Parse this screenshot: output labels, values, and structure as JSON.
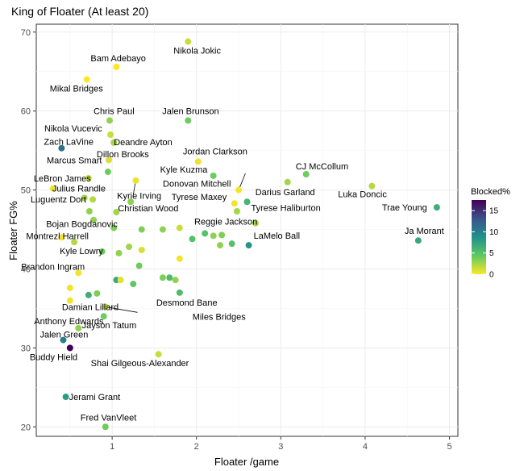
{
  "chart_data": {
    "type": "scatter",
    "title": "King of Floater (At least 20)",
    "xlabel": "Floater /game",
    "ylabel": "Floater FG%",
    "xlim": [
      0.1,
      5.1
    ],
    "ylim": [
      18.8,
      71.0
    ],
    "xticks": [
      1,
      2,
      3,
      4,
      5
    ],
    "yticks": [
      20,
      30,
      40,
      50,
      60,
      70
    ],
    "grid": true,
    "legend": {
      "title": "Blocked%",
      "ticks": [
        0,
        5,
        10,
        15
      ],
      "min": 0,
      "max": 17.5,
      "position": "right"
    },
    "points": [
      {
        "x": 1.9,
        "y": 68.8,
        "blocked": 1.5,
        "label": "Nikola Jokic"
      },
      {
        "x": 1.05,
        "y": 65.6,
        "blocked": 0.0,
        "label": "Bam Adebayo"
      },
      {
        "x": 0.7,
        "y": 64.0,
        "blocked": 0.0,
        "label": "Mikal Bridges"
      },
      {
        "x": 0.97,
        "y": 58.8,
        "blocked": 3.0,
        "label": "Chris Paul"
      },
      {
        "x": 1.9,
        "y": 58.8,
        "blocked": 4.0,
        "label": "Jalen Brunson"
      },
      {
        "x": 0.98,
        "y": 57.0,
        "blocked": 1.5,
        "label": "Nikola Vucevic"
      },
      {
        "x": 0.4,
        "y": 55.3,
        "blocked": 11.0,
        "label": "Zach LaVine"
      },
      {
        "x": 1.02,
        "y": 56.0,
        "blocked": 2.5,
        "label": "Deandre Ayton"
      },
      {
        "x": 2.02,
        "y": 53.6,
        "blocked": 0.5,
        "label": "Jordan Clarkson"
      },
      {
        "x": 0.96,
        "y": 53.8,
        "blocked": 1.0,
        "label": "Marcus Smart"
      },
      {
        "x": 3.3,
        "y": 52.0,
        "blocked": 4.0,
        "label": "CJ McCollum"
      },
      {
        "x": 2.2,
        "y": 51.8,
        "blocked": 4.0,
        "label": "Kyle Kuzma"
      },
      {
        "x": 0.72,
        "y": 51.5,
        "blocked": 1.5,
        "label": "LeBron James"
      },
      {
        "x": 0.95,
        "y": 52.3,
        "blocked": 4.0,
        "label": "Dillon Brooks"
      },
      {
        "x": 3.08,
        "y": 51.0,
        "blocked": 2.5,
        "label": "Darius Garland"
      },
      {
        "x": 2.5,
        "y": 50.0,
        "blocked": 0.2,
        "label": "Donovan Mitchell"
      },
      {
        "x": 4.08,
        "y": 50.5,
        "blocked": 2.0,
        "label": "Luka Doncic"
      },
      {
        "x": 0.3,
        "y": 50.2,
        "blocked": 0.5,
        "label": "Julius Randle"
      },
      {
        "x": 1.22,
        "y": 48.5,
        "blocked": 3.0,
        "label": "Kyrie Irving"
      },
      {
        "x": 2.45,
        "y": 48.3,
        "blocked": 0.3,
        "label": "Tyrese Maxey"
      },
      {
        "x": 2.6,
        "y": 48.5,
        "blocked": 6.0,
        "label": "Tyrese Haliburton"
      },
      {
        "x": 0.73,
        "y": 47.3,
        "blocked": 3.0,
        "label": "Luguentz Dort"
      },
      {
        "x": 4.85,
        "y": 47.8,
        "blocked": 6.5,
        "label": "Trae Young"
      },
      {
        "x": 1.05,
        "y": 47.2,
        "blocked": 2.5,
        "label": "Christian Wood"
      },
      {
        "x": 2.7,
        "y": 45.8,
        "blocked": 2.5,
        "label": "Reggie Jackson"
      },
      {
        "x": 1.02,
        "y": 45.2,
        "blocked": 3.5,
        "label": "Bojan Bogdanovic"
      },
      {
        "x": 0.4,
        "y": 44.0,
        "blocked": 0.3,
        "label": "Montrezl Harrell"
      },
      {
        "x": 2.62,
        "y": 43.0,
        "blocked": 8.5,
        "label": "LaMelo Ball"
      },
      {
        "x": 4.63,
        "y": 43.6,
        "blocked": 7.0,
        "label": "Ja Morant"
      },
      {
        "x": 0.55,
        "y": 43.4,
        "blocked": 2.0,
        "label": "Kyle Lowry"
      },
      {
        "x": 0.6,
        "y": 39.5,
        "blocked": 0.3,
        "label": "Brandon Ingram"
      },
      {
        "x": 0.5,
        "y": 36.0,
        "blocked": 0.3,
        "label": "Damian Lillard"
      },
      {
        "x": 0.92,
        "y": 35.2,
        "blocked": 2.0,
        "label": "Miles Bridges"
      },
      {
        "x": 1.8,
        "y": 37.0,
        "blocked": 5.5,
        "label": "Desmond Bane"
      },
      {
        "x": 0.6,
        "y": 32.5,
        "blocked": 3.0,
        "label": "Anthony Edwards"
      },
      {
        "x": 0.9,
        "y": 34.0,
        "blocked": 4.0,
        "label": "Jayson Tatum"
      },
      {
        "x": 0.42,
        "y": 31.0,
        "blocked": 10.0,
        "label": "Jalen Green"
      },
      {
        "x": 0.5,
        "y": 30.0,
        "blocked": 17.5,
        "label": "Buddy Hield"
      },
      {
        "x": 1.55,
        "y": 29.2,
        "blocked": 1.5,
        "label": "Shai Gilgeous-Alexander"
      },
      {
        "x": 0.45,
        "y": 23.8,
        "blocked": 8.0,
        "label": "Jerami Grant"
      },
      {
        "x": 0.92,
        "y": 20.0,
        "blocked": 4.0,
        "label": "Fred VanVleet"
      },
      {
        "x": 1.28,
        "y": 51.2,
        "blocked": 0.5,
        "label": ""
      },
      {
        "x": 1.35,
        "y": 45.0,
        "blocked": 3.5,
        "label": ""
      },
      {
        "x": 1.6,
        "y": 45.0,
        "blocked": 3.0,
        "label": ""
      },
      {
        "x": 1.8,
        "y": 45.2,
        "blocked": 1.5,
        "label": ""
      },
      {
        "x": 1.95,
        "y": 43.8,
        "blocked": 5.0,
        "label": ""
      },
      {
        "x": 2.1,
        "y": 44.5,
        "blocked": 5.0,
        "label": ""
      },
      {
        "x": 2.3,
        "y": 44.3,
        "blocked": 3.5,
        "label": ""
      },
      {
        "x": 2.48,
        "y": 47.3,
        "blocked": 2.5,
        "label": ""
      },
      {
        "x": 2.28,
        "y": 43.0,
        "blocked": 3.0,
        "label": ""
      },
      {
        "x": 2.42,
        "y": 43.2,
        "blocked": 5.0,
        "label": ""
      },
      {
        "x": 2.2,
        "y": 44.2,
        "blocked": 3.0,
        "label": ""
      },
      {
        "x": 0.67,
        "y": 49.0,
        "blocked": 2.5,
        "label": ""
      },
      {
        "x": 0.77,
        "y": 48.8,
        "blocked": 2.0,
        "label": ""
      },
      {
        "x": 0.78,
        "y": 46.2,
        "blocked": 3.0,
        "label": ""
      },
      {
        "x": 0.88,
        "y": 42.2,
        "blocked": 4.0,
        "label": ""
      },
      {
        "x": 1.08,
        "y": 42.0,
        "blocked": 3.0,
        "label": ""
      },
      {
        "x": 1.2,
        "y": 42.8,
        "blocked": 2.5,
        "label": ""
      },
      {
        "x": 1.35,
        "y": 42.4,
        "blocked": 1.0,
        "label": ""
      },
      {
        "x": 1.32,
        "y": 40.4,
        "blocked": 4.0,
        "label": ""
      },
      {
        "x": 1.8,
        "y": 41.3,
        "blocked": 0.3,
        "label": ""
      },
      {
        "x": 1.05,
        "y": 38.6,
        "blocked": 7.0,
        "label": ""
      },
      {
        "x": 1.1,
        "y": 38.6,
        "blocked": 0.8,
        "label": ""
      },
      {
        "x": 1.25,
        "y": 38.1,
        "blocked": 4.5,
        "label": ""
      },
      {
        "x": 1.6,
        "y": 38.9,
        "blocked": 3.5,
        "label": ""
      },
      {
        "x": 1.68,
        "y": 38.9,
        "blocked": 5.5,
        "label": ""
      },
      {
        "x": 1.75,
        "y": 38.6,
        "blocked": 3.0,
        "label": ""
      },
      {
        "x": 0.5,
        "y": 37.6,
        "blocked": 0.3,
        "label": ""
      },
      {
        "x": 0.72,
        "y": 36.7,
        "blocked": 6.5,
        "label": ""
      },
      {
        "x": 0.82,
        "y": 36.9,
        "blocked": 3.5,
        "label": ""
      }
    ],
    "leaders": [
      {
        "from": [
          1.28,
          51.2
        ],
        "to": [
          1.25,
          49.4
        ]
      },
      {
        "from": [
          2.5,
          50.0
        ],
        "to": [
          2.58,
          52.1
        ]
      },
      {
        "from": [
          0.92,
          35.2
        ],
        "to": [
          1.3,
          34.5
        ]
      }
    ]
  }
}
